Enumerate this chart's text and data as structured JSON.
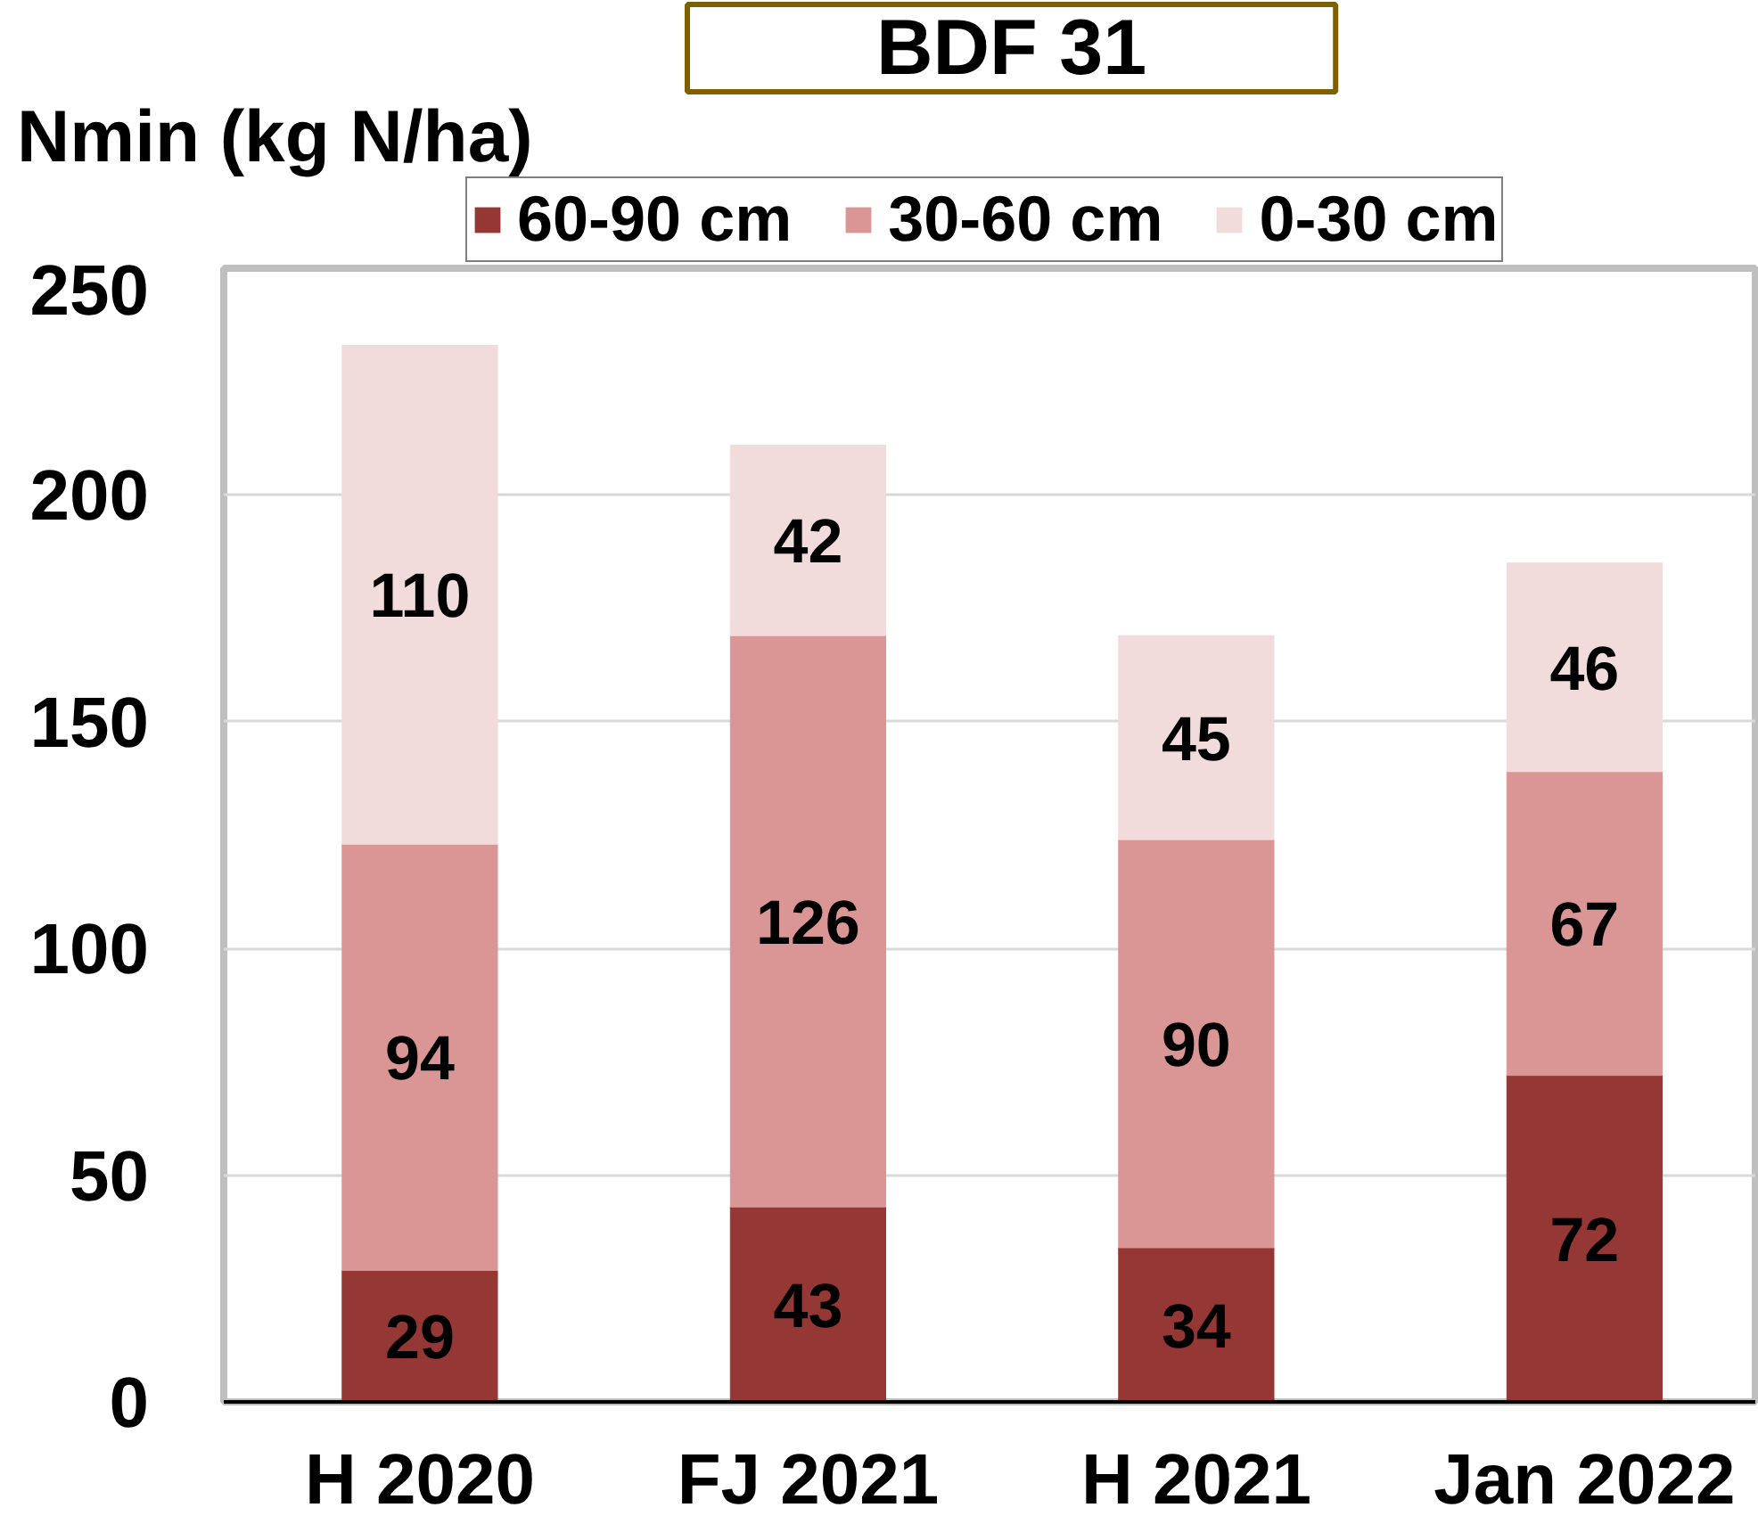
{
  "chart_data": {
    "type": "bar",
    "title": "BDF 31",
    "ylabel": "Nmin (kg N/ha)",
    "categories": [
      "H 2020",
      "FJ 2021",
      "H 2021",
      "Jan 2022"
    ],
    "stacked": true,
    "series": [
      {
        "name": "60-90 cm",
        "color": "#953735",
        "values": [
          29,
          43,
          34,
          72
        ]
      },
      {
        "name": "30-60 cm",
        "color": "#d99694",
        "values": [
          94,
          126,
          90,
          67
        ]
      },
      {
        "name": "0-30 cm",
        "color": "#f2dcdb",
        "values": [
          110,
          42,
          45,
          46
        ]
      }
    ],
    "ylim": [
      0,
      250
    ],
    "yticks": [
      0,
      50,
      100,
      150,
      200,
      250
    ],
    "grid": "y",
    "legend": "top",
    "data_labels": true
  }
}
